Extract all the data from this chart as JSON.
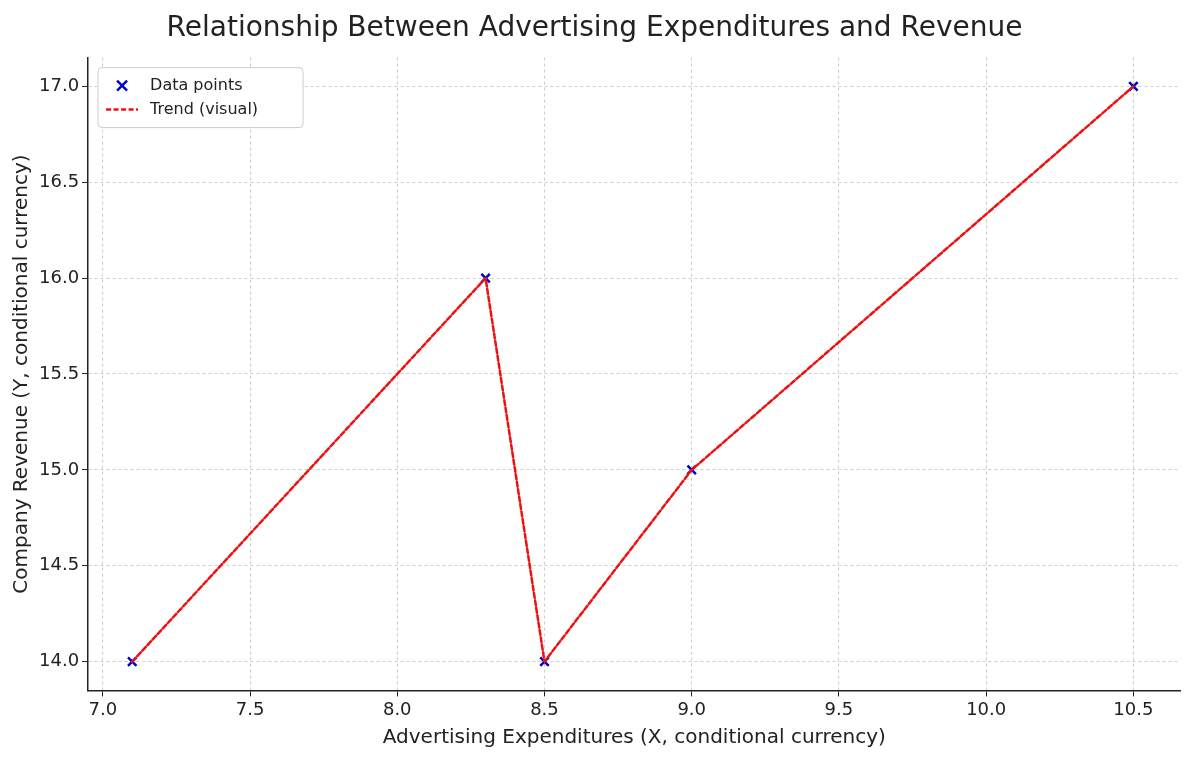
{
  "chart_data": {
    "type": "scatter",
    "title": "Relationship Between Advertising Expenditures and Revenue",
    "xlabel": "Advertising Expenditures (X, conditional currency)",
    "ylabel": "Company Revenue (Y, conditional currency)",
    "xlim": [
      6.95,
      10.66
    ],
    "ylim": [
      13.85,
      17.15
    ],
    "xticks": [
      {
        "value": 7,
        "label": "7.0"
      },
      7.5,
      {
        "value": 8,
        "label": "8.0"
      },
      8.5,
      {
        "value": 9,
        "label": "9.0"
      },
      9.5,
      {
        "value": 10,
        "label": "10.0"
      },
      10.5
    ],
    "yticks": [
      {
        "value": 14,
        "label": "14.0"
      },
      14.5,
      {
        "value": 15,
        "label": "15.0"
      },
      15.5,
      {
        "value": 16,
        "label": "16.0"
      },
      16.5,
      {
        "value": 17,
        "label": "17.0"
      }
    ],
    "grid": true,
    "legend": "top left",
    "series": [
      {
        "name": "Data points",
        "type": "scatter",
        "color": "#0000cc",
        "marker": "cross",
        "x": [
          7.1,
          8.3,
          8.5,
          9.0,
          10.5
        ],
        "values": [
          14,
          16,
          14,
          15,
          17
        ]
      },
      {
        "name": "Trend (visual)",
        "type": "line",
        "color": "#ee1111",
        "line_style": "dashed",
        "marker": "none",
        "x": [
          7.1,
          8.3,
          8.5,
          9.0,
          10.5
        ],
        "values": [
          14,
          16,
          14,
          15,
          17
        ]
      }
    ]
  }
}
